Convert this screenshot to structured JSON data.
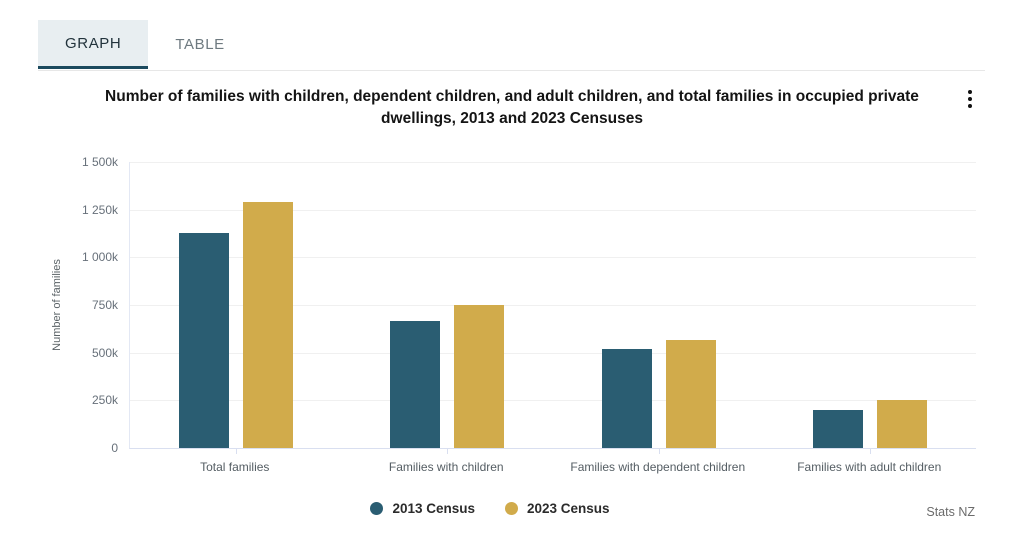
{
  "tabs": {
    "graph": "GRAPH",
    "table": "TABLE"
  },
  "title": "Number of families with children, dependent children, and adult children, and total families in occupied private dwellings, 2013 and 2023 Censuses",
  "source": "Stats NZ",
  "colors": {
    "series_2013": "#2a5d72",
    "series_2023": "#d1ab4b",
    "tab_active_bg": "#e8eef1",
    "tab_underline": "#1b4a5e",
    "gridline": "#f0f0f0",
    "axis_line": "#d9dff0"
  },
  "chart_data": {
    "type": "bar",
    "title": "Number of families with children, dependent children, and adult children, and total families in occupied private dwellings, 2013 and 2023 Censuses",
    "categories": [
      "Total families",
      "Families with children",
      "Families with dependent children",
      "Families with adult children"
    ],
    "series": [
      {
        "name": "2013 Census",
        "color": "#2a5d72",
        "values": [
          1130000,
          668000,
          520000,
          198000
        ]
      },
      {
        "name": "2023 Census",
        "color": "#d1ab4b",
        "values": [
          1290000,
          752000,
          568000,
          253000
        ]
      }
    ],
    "xlabel": "",
    "ylabel": "Number of families",
    "y_ticks": [
      "0",
      "250k",
      "500k",
      "750k",
      "1 000k",
      "1 250k",
      "1 500k"
    ],
    "ylim": [
      0,
      1500000
    ],
    "grid": "horizontal",
    "legend_position": "bottom-center",
    "source": "Stats NZ"
  }
}
